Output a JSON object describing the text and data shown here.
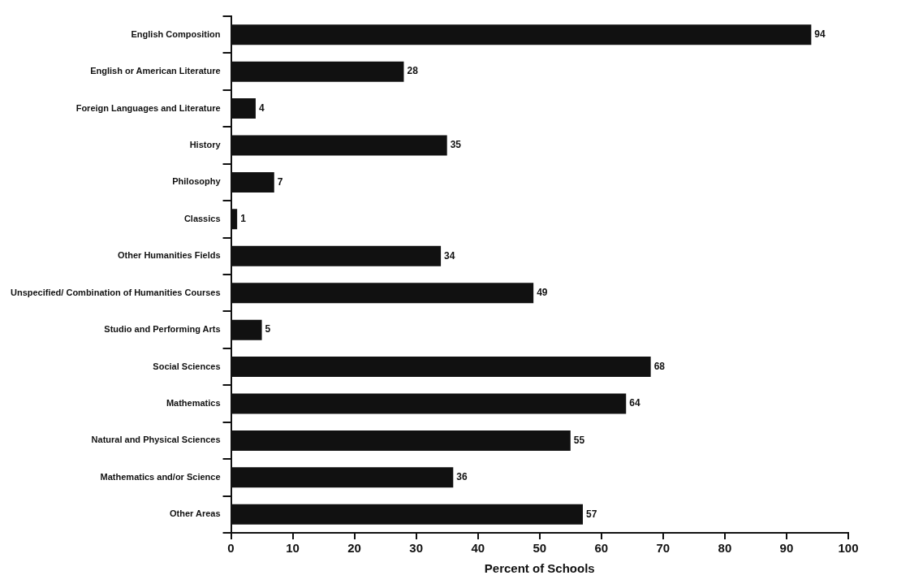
{
  "chart_data": {
    "type": "bar",
    "orientation": "horizontal",
    "xlabel": "Percent of Schools",
    "categories": [
      "English Composition",
      "English or American Literature",
      "Foreign Languages and Literature",
      "History",
      "Philosophy",
      "Classics",
      "Other Humanities Fields",
      "Unspecified/ Combination of Humanities Courses",
      "Studio and Performing Arts",
      "Social Sciences",
      "Mathematics",
      "Natural and Physical Sciences",
      "Mathematics and/or Science",
      "Other Areas"
    ],
    "values": [
      94,
      28,
      4,
      35,
      7,
      1,
      34,
      49,
      5,
      68,
      64,
      55,
      36,
      57
    ],
    "color": "#111111",
    "xlim": [
      0,
      100
    ],
    "xticks": [
      0,
      10,
      20,
      30,
      40,
      50,
      60,
      70,
      80,
      90,
      100
    ],
    "grid": false,
    "legend": false,
    "data_labels": true
  }
}
